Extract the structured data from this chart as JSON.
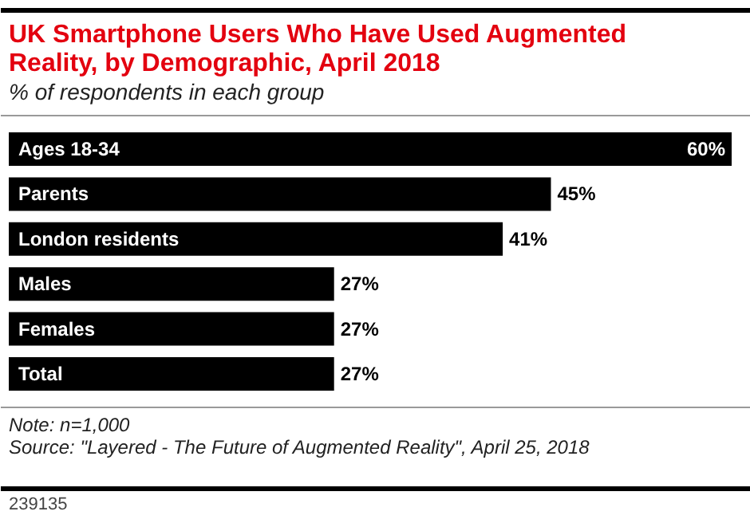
{
  "chart_data": {
    "type": "bar",
    "orientation": "horizontal",
    "title": "UK Smartphone Users Who Have Used Augmented Reality, by Demographic, April 2018",
    "subtitle": "% of respondents in each group",
    "categories": [
      "Ages 18-34",
      "Parents",
      "London residents",
      "Males",
      "Females",
      "Total"
    ],
    "values": [
      60,
      45,
      41,
      27,
      27,
      27
    ],
    "value_labels": [
      "60%",
      "45%",
      "41%",
      "27%",
      "27%",
      "27%"
    ],
    "color": "#000000",
    "annotations": [
      "Note: n=1,000",
      "Source: \"Layered - The Future of Augmented Reality\", April 25, 2018",
      "239135"
    ]
  }
}
